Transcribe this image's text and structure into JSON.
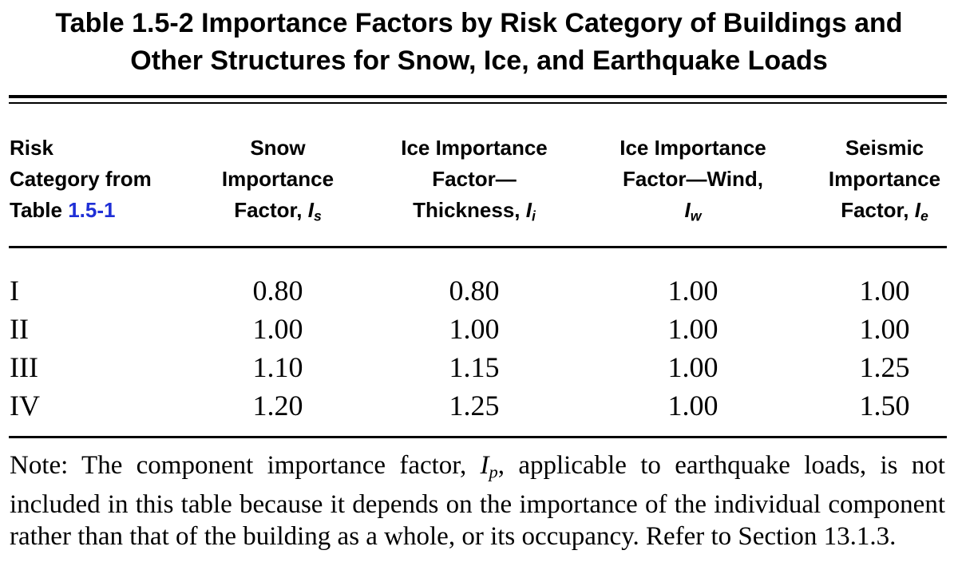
{
  "table": {
    "title_line1": "Table 1.5-2 Importance Factors by Risk Category of Buildings and",
    "title_line2": "Other Structures for Snow, Ice, and Earthquake Loads",
    "headers": {
      "risk": {
        "line1": "Risk",
        "line2": "Category from",
        "line3_prefix": "Table ",
        "line3_link": "1.5-1"
      },
      "snow": {
        "line1": "Snow",
        "line2": "Importance",
        "line3_prefix": "Factor, ",
        "symbol": "I",
        "subscript": "s"
      },
      "ice_thickness": {
        "line1": "Ice Importance",
        "line2": "Factor—",
        "line3_prefix": "Thickness, ",
        "symbol": "I",
        "subscript": "i"
      },
      "ice_wind": {
        "line1": "Ice Importance",
        "line2": "Factor—Wind,",
        "symbol": "I",
        "subscript": "w"
      },
      "seismic": {
        "line1": "Seismic",
        "line2": "Importance",
        "line3_prefix": "Factor, ",
        "symbol": "I",
        "subscript": "e"
      }
    },
    "rows": [
      {
        "category": "I",
        "snow": "0.80",
        "ice_thickness": "0.80",
        "ice_wind": "1.00",
        "seismic": "1.00"
      },
      {
        "category": "II",
        "snow": "1.00",
        "ice_thickness": "1.00",
        "ice_wind": "1.00",
        "seismic": "1.00"
      },
      {
        "category": "III",
        "snow": "1.10",
        "ice_thickness": "1.15",
        "ice_wind": "1.00",
        "seismic": "1.25"
      },
      {
        "category": "IV",
        "snow": "1.20",
        "ice_thickness": "1.25",
        "ice_wind": "1.00",
        "seismic": "1.50"
      }
    ],
    "note": {
      "before": "Note: The component importance factor, ",
      "symbol": "I",
      "subscript": "p",
      "after": ", applicable to earthquake loads, is not included in this table because it depends on the importance of the individual component rather than that of the building as a whole, or its occupancy. Refer to Section 13.1.3."
    }
  },
  "colors": {
    "link": "#1f2fd6",
    "text": "#000000",
    "background": "#ffffff"
  }
}
